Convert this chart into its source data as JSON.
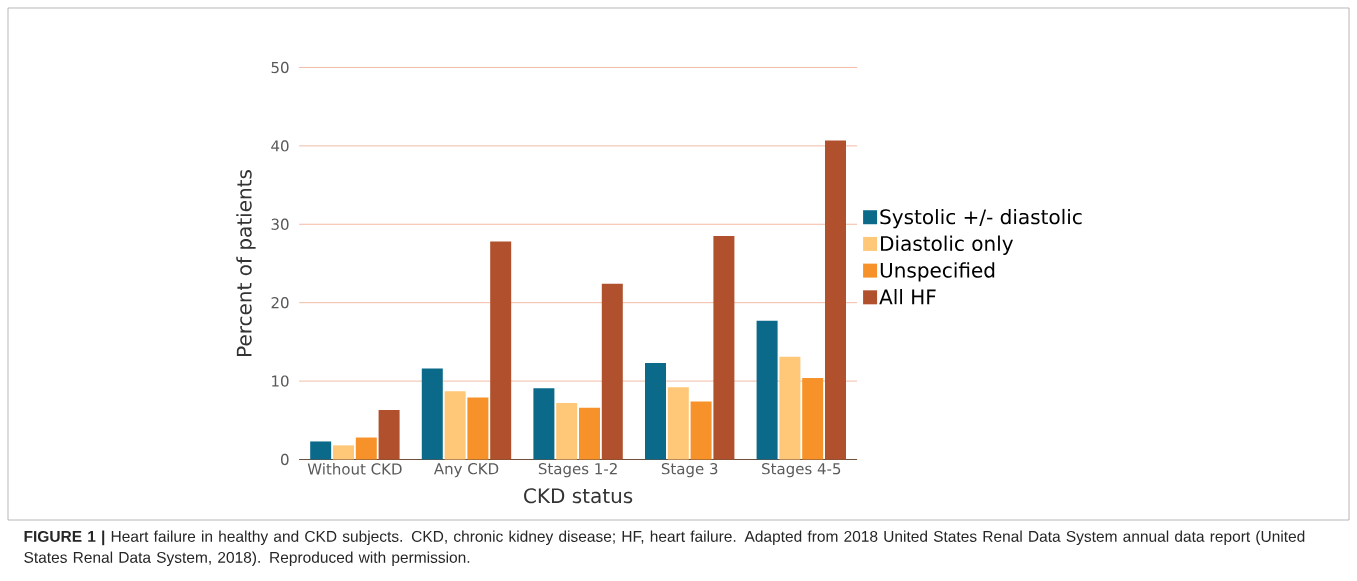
{
  "chart_data": {
    "type": "bar",
    "xlabel": "CKD status",
    "ylabel": "Percent of patients",
    "categories": [
      "Without CKD",
      "Any CKD",
      "Stages 1-2",
      "Stage 3",
      "Stages 4-5"
    ],
    "series": [
      {
        "name": "Systolic +/- diastolic",
        "color": "#0b6a8a",
        "values": [
          2.3,
          11.6,
          9.1,
          12.3,
          17.7
        ]
      },
      {
        "name": "Diastolic only",
        "color": "#fec878",
        "values": [
          1.8,
          8.7,
          7.2,
          9.2,
          13.1
        ]
      },
      {
        "name": "Unspecified",
        "color": "#f7922a",
        "values": [
          2.8,
          7.9,
          6.6,
          7.4,
          10.4
        ]
      },
      {
        "name": "All HF",
        "color": "#b0502c",
        "values": [
          6.3,
          27.8,
          22.4,
          28.5,
          40.7
        ]
      }
    ],
    "ylim": [
      0,
      50
    ],
    "yticks": [
      0,
      10,
      20,
      30,
      40,
      50
    ],
    "grid": "y",
    "legend": "right",
    "annotations": [
      "**FIGURE 1 |** Heart failure in healthy and CKD subjects. CKD, chronic kidney disease; HF, heart failure. Adapted from 2018 United States Renal Data System annual data report (United States Renal Data System, 2018). Reproduced with permission."
    ]
  }
}
